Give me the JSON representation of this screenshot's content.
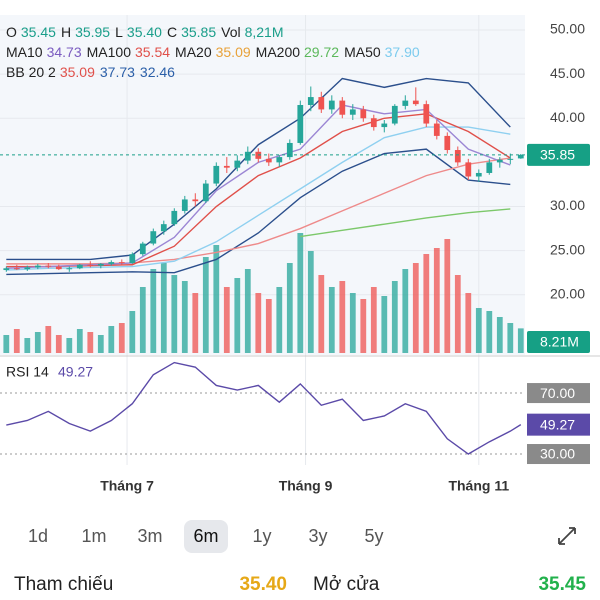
{
  "header": {
    "ohlc": [
      {
        "label": "O",
        "value": "35.45"
      },
      {
        "label": "H",
        "value": "35.95"
      },
      {
        "label": "L",
        "value": "35.40"
      },
      {
        "label": "C",
        "value": "35.85"
      },
      {
        "label": "Vol",
        "value": "8,21M"
      }
    ],
    "ma": [
      {
        "label": "MA10",
        "value": "34.73",
        "color": "#7b5cc0"
      },
      {
        "label": "MA100",
        "value": "35.54",
        "color": "#e0504a"
      },
      {
        "label": "MA20",
        "value": "35.09",
        "color": "#e8a23a"
      },
      {
        "label": "MA200",
        "value": "29.72",
        "color": "#5cb85c"
      },
      {
        "label": "MA50",
        "value": "37.90",
        "color": "#7ccbee"
      }
    ],
    "bb": {
      "label": "BB 20 2",
      "values": [
        "35.09",
        "37.73",
        "32.46"
      ],
      "colors": [
        "#e0504a",
        "#2b5fa8",
        "#2b5fa8"
      ]
    }
  },
  "chart_data": {
    "type": "candlestick",
    "up_color": "#26a69a",
    "down_color": "#ef5350",
    "candles": [
      [
        22.8,
        23.2,
        22.6,
        23.0
      ],
      [
        23.0,
        23.4,
        22.8,
        22.9
      ],
      [
        22.9,
        23.3,
        22.7,
        23.1
      ],
      [
        23.1,
        23.5,
        22.9,
        23.3
      ],
      [
        23.3,
        23.6,
        23.0,
        23.2
      ],
      [
        23.2,
        23.4,
        22.8,
        22.9
      ],
      [
        22.9,
        23.2,
        22.6,
        23.0
      ],
      [
        23.0,
        23.5,
        22.9,
        23.4
      ],
      [
        23.4,
        23.8,
        23.1,
        23.3
      ],
      [
        23.3,
        23.6,
        23.0,
        23.5
      ],
      [
        23.5,
        23.9,
        23.3,
        23.7
      ],
      [
        23.7,
        24.0,
        23.4,
        23.6
      ],
      [
        23.6,
        24.8,
        23.5,
        24.6
      ],
      [
        24.6,
        26.0,
        24.4,
        25.8
      ],
      [
        25.8,
        27.5,
        25.6,
        27.2
      ],
      [
        27.2,
        28.4,
        26.8,
        28.0
      ],
      [
        28.0,
        29.8,
        27.8,
        29.5
      ],
      [
        29.5,
        31.2,
        29.2,
        30.8
      ],
      [
        30.8,
        31.5,
        30.0,
        30.6
      ],
      [
        30.6,
        33.0,
        30.4,
        32.6
      ],
      [
        32.6,
        35.0,
        32.3,
        34.6
      ],
      [
        34.6,
        35.6,
        33.8,
        34.4
      ],
      [
        34.4,
        35.8,
        34.0,
        35.2
      ],
      [
        35.2,
        36.8,
        34.8,
        36.2
      ],
      [
        36.2,
        36.6,
        35.0,
        35.4
      ],
      [
        35.4,
        36.0,
        34.6,
        35.0
      ],
      [
        35.0,
        35.8,
        34.5,
        35.6
      ],
      [
        35.6,
        37.6,
        35.3,
        37.2
      ],
      [
        37.2,
        42.0,
        37.0,
        41.5
      ],
      [
        41.5,
        43.6,
        40.8,
        42.4
      ],
      [
        42.4,
        43.0,
        40.6,
        41.0
      ],
      [
        41.0,
        42.6,
        40.5,
        42.0
      ],
      [
        42.0,
        42.4,
        40.0,
        40.4
      ],
      [
        40.4,
        41.6,
        39.8,
        41.0
      ],
      [
        41.0,
        41.4,
        39.6,
        40.0
      ],
      [
        40.0,
        40.4,
        38.6,
        39.0
      ],
      [
        39.0,
        39.8,
        38.4,
        39.4
      ],
      [
        39.4,
        41.6,
        39.2,
        41.4
      ],
      [
        41.4,
        42.6,
        41.0,
        42.0
      ],
      [
        42.0,
        43.5,
        41.4,
        41.6
      ],
      [
        41.6,
        42.0,
        39.0,
        39.4
      ],
      [
        39.4,
        39.8,
        37.6,
        38.0
      ],
      [
        38.0,
        38.4,
        36.0,
        36.4
      ],
      [
        36.4,
        36.8,
        34.6,
        35.0
      ],
      [
        35.0,
        35.4,
        33.0,
        33.4
      ],
      [
        33.4,
        34.2,
        32.8,
        33.8
      ],
      [
        33.8,
        35.4,
        33.6,
        35.0
      ],
      [
        35.0,
        35.6,
        34.4,
        35.3
      ],
      [
        35.3,
        36.0,
        34.8,
        35.4
      ],
      [
        35.45,
        35.95,
        35.4,
        35.85
      ]
    ],
    "volumes": [
      6,
      8,
      5,
      7,
      9,
      6,
      5,
      8,
      7,
      6,
      9,
      10,
      14,
      22,
      28,
      30,
      26,
      24,
      20,
      32,
      36,
      22,
      25,
      28,
      20,
      18,
      22,
      30,
      40,
      34,
      26,
      22,
      24,
      20,
      18,
      22,
      19,
      24,
      28,
      30,
      33,
      35,
      38,
      26,
      20,
      15,
      14,
      12,
      10,
      8.21
    ],
    "volume_label": {
      "value": 8.21,
      "label": "8.21M"
    },
    "last_price": 35.85,
    "ylim": [
      13.4,
      51.7
    ],
    "yticks": [
      {
        "value": 50,
        "label": "50.00"
      },
      {
        "value": 45,
        "label": "45.00"
      },
      {
        "value": 40,
        "label": "40.00"
      },
      {
        "value": 30,
        "label": "30.00"
      },
      {
        "value": 25,
        "label": "25.00"
      },
      {
        "value": 20,
        "label": "20.00"
      }
    ],
    "xlim": [
      -0.6,
      49.4
    ],
    "xticks": [
      {
        "value": 11.5,
        "label": "Tháng 7"
      },
      {
        "value": 28.5,
        "label": "Tháng 9"
      },
      {
        "value": 45,
        "label": "Tháng 11"
      }
    ],
    "line_x": [
      0,
      4,
      8,
      12,
      16,
      20,
      24,
      28,
      32,
      36,
      40,
      44,
      48
    ],
    "lines": [
      {
        "color": "#2b4f8c",
        "values": [
          24,
          24,
          24,
          24.5,
          28,
          32,
          37,
          40,
          44.5,
          43.5,
          44.5,
          44,
          39
        ]
      },
      {
        "color": "#2b4f8c",
        "values": [
          22.3,
          22.4,
          22.5,
          22.6,
          22.5,
          24,
          27,
          31,
          34,
          36,
          36.5,
          33,
          32.5
        ]
      },
      {
        "color": "#ee8a8a",
        "values": [
          23.5,
          23.5,
          23.5,
          23.6,
          24,
          24.8,
          25.8,
          27.5,
          29.5,
          31.5,
          33.5,
          34.8,
          35.5
        ]
      },
      {
        "color": "#8fd0f0",
        "values": [
          22.8,
          23,
          23.1,
          23.2,
          23.8,
          26,
          29,
          32,
          35,
          37.8,
          39,
          39,
          38.2
        ]
      },
      {
        "color": "#e0504a",
        "values": [
          23.2,
          23.2,
          23.3,
          23.4,
          25.5,
          30,
          33.5,
          35.5,
          38.5,
          40,
          40.5,
          38.5,
          35.5
        ]
      },
      {
        "color": "#9b86d4",
        "values": [
          23,
          23.2,
          23.4,
          23.6,
          26.5,
          31.8,
          35,
          36.5,
          41.5,
          40.5,
          41,
          36.5,
          34.7
        ]
      },
      {
        "color": "#7cc86a",
        "values": [
          null,
          null,
          null,
          null,
          null,
          null,
          null,
          26.6,
          27.3,
          28.0,
          28.7,
          29.3,
          29.72
        ]
      }
    ],
    "rsi": {
      "label": "RSI 14",
      "value": "49.27",
      "color": "#5b4aa8",
      "ylim": [
        22.8,
        93
      ],
      "yticks": [
        {
          "value": 70,
          "label": "70.00"
        },
        {
          "value": 30,
          "label": "30.00"
        }
      ],
      "current": 49.27,
      "x": [
        0,
        2,
        4,
        6,
        8,
        10,
        12,
        14,
        16,
        18,
        20,
        22,
        24,
        26,
        28,
        30,
        32,
        34,
        36,
        38,
        40,
        42,
        44,
        46,
        48,
        49
      ],
      "values": [
        49,
        52,
        58,
        50,
        45,
        52,
        63,
        82,
        90,
        87,
        75,
        72,
        75,
        64,
        76,
        62,
        66,
        52,
        55,
        63,
        58,
        40,
        30,
        38,
        45,
        49.27
      ]
    }
  },
  "periods": {
    "items": [
      "1d",
      "1m",
      "3m",
      "6m",
      "1y",
      "3y",
      "5y"
    ],
    "selected_index": 3
  },
  "footer": [
    {
      "label": "Tham chiếu",
      "value": "35.40",
      "color": "#e6a817"
    },
    {
      "label": "Mở cửa",
      "value": "35.45",
      "color": "#22b14c"
    }
  ]
}
